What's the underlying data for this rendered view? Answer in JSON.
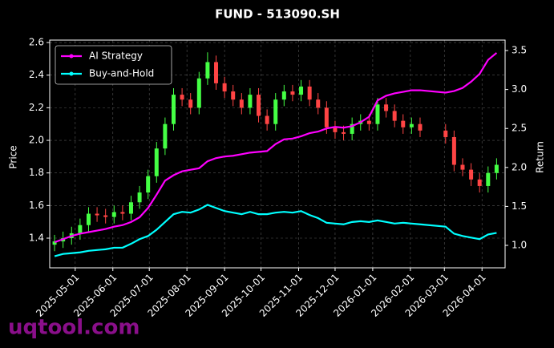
{
  "chart_data": {
    "type": "candlestick",
    "title": "FUND - 513090.SH",
    "ylabel": "Price",
    "y2label": "Return",
    "watermark": "uqtool.com",
    "up_color": "#44ff44",
    "down_color": "#ff4444",
    "grid": true,
    "legend": "upper left",
    "xlim": [
      "2025-04-10",
      "2026-04-20"
    ],
    "xticks": [
      "2025-05-01",
      "2025-06-01",
      "2025-07-01",
      "2025-08-01",
      "2025-09-01",
      "2025-10-01",
      "2025-11-01",
      "2025-12-01",
      "2026-01-01",
      "2026-02-01",
      "2026-03-01",
      "2026-04-01"
    ],
    "ylim": [
      1.218,
      2.615
    ],
    "yticks": [
      1.4,
      1.6,
      1.8,
      {
        "value": 2,
        "label": "2.0"
      },
      2.2,
      2.4,
      2.6
    ],
    "y2lim": [
      0.712,
      3.634
    ],
    "y2ticks": [
      {
        "value": 1,
        "label": "1.0"
      },
      1.5,
      {
        "value": 2,
        "label": "2.0"
      },
      2.5,
      {
        "value": 3,
        "label": "3.0"
      },
      3.5
    ],
    "x": [
      "2025-04-14",
      "2025-04-21",
      "2025-04-28",
      "2025-05-05",
      "2025-05-12",
      "2025-05-19",
      "2025-05-26",
      "2025-06-02",
      "2025-06-09",
      "2025-06-16",
      "2025-06-23",
      "2025-06-30",
      "2025-07-07",
      "2025-07-14",
      "2025-07-21",
      "2025-07-28",
      "2025-08-04",
      "2025-08-11",
      "2025-08-18",
      "2025-08-25",
      "2025-09-01",
      "2025-09-08",
      "2025-09-15",
      "2025-09-22",
      "2025-09-29",
      "2025-10-06",
      "2025-10-13",
      "2025-10-20",
      "2025-10-27",
      "2025-11-03",
      "2025-11-10",
      "2025-11-17",
      "2025-11-24",
      "2025-12-01",
      "2025-12-08",
      "2025-12-15",
      "2025-12-22",
      "2025-12-29",
      "2026-01-05",
      "2026-01-12",
      "2026-01-19",
      "2026-01-26",
      "2026-02-02",
      "2026-02-09",
      "2026-03-02",
      "2026-03-09",
      "2026-03-16",
      "2026-03-23",
      "2026-03-30",
      "2026-04-06",
      "2026-04-13"
    ],
    "open": [
      1.36,
      1.38,
      1.4,
      1.43,
      1.48,
      1.55,
      1.54,
      1.53,
      1.56,
      1.55,
      1.62,
      1.68,
      1.78,
      1.95,
      2.1,
      2.28,
      2.25,
      2.2,
      2.38,
      2.48,
      2.35,
      2.3,
      2.25,
      2.2,
      2.28,
      2.15,
      2.1,
      2.25,
      2.3,
      2.28,
      2.33,
      2.25,
      2.2,
      2.08,
      2.05,
      2.04,
      2.1,
      2.12,
      2.1,
      2.22,
      2.18,
      2.12,
      2.08,
      2.1,
      2.06,
      2.02,
      1.85,
      1.82,
      1.76,
      1.72,
      1.8
    ],
    "high": [
      1.42,
      1.44,
      1.47,
      1.52,
      1.59,
      1.59,
      1.58,
      1.6,
      1.6,
      1.66,
      1.72,
      1.82,
      1.99,
      2.14,
      2.32,
      2.32,
      2.29,
      2.42,
      2.54,
      2.52,
      2.39,
      2.34,
      2.29,
      2.32,
      2.32,
      2.19,
      2.29,
      2.34,
      2.34,
      2.37,
      2.37,
      2.29,
      2.24,
      2.12,
      2.09,
      2.14,
      2.16,
      2.16,
      2.26,
      2.26,
      2.22,
      2.16,
      2.14,
      2.14,
      2.1,
      2.06,
      1.89,
      1.86,
      1.8,
      1.84,
      1.89
    ],
    "low": [
      1.32,
      1.34,
      1.36,
      1.39,
      1.44,
      1.5,
      1.49,
      1.49,
      1.51,
      1.51,
      1.58,
      1.64,
      1.74,
      1.91,
      2.06,
      2.21,
      2.16,
      2.16,
      2.34,
      2.31,
      2.26,
      2.21,
      2.16,
      2.16,
      2.11,
      2.06,
      2.06,
      2.21,
      2.24,
      2.24,
      2.21,
      2.16,
      2.04,
      2.01,
      2.0,
      2.0,
      2.06,
      2.06,
      2.06,
      2.14,
      2.08,
      2.04,
      2.04,
      2.02,
      1.98,
      1.81,
      1.78,
      1.72,
      1.68,
      1.68,
      1.76
    ],
    "close": [
      1.38,
      1.4,
      1.43,
      1.48,
      1.55,
      1.54,
      1.53,
      1.56,
      1.55,
      1.62,
      1.68,
      1.78,
      1.95,
      2.1,
      2.28,
      2.25,
      2.2,
      2.38,
      2.48,
      2.35,
      2.3,
      2.25,
      2.2,
      2.28,
      2.15,
      2.1,
      2.25,
      2.3,
      2.28,
      2.33,
      2.25,
      2.2,
      2.08,
      2.05,
      2.04,
      2.1,
      2.12,
      2.1,
      2.22,
      2.18,
      2.12,
      2.08,
      2.1,
      2.06,
      2.02,
      1.85,
      1.82,
      1.76,
      1.72,
      1.8,
      1.85
    ],
    "series": [
      {
        "name": "AI Strategy",
        "color": "#ff00ff",
        "axis": "y2",
        "values": [
          1.04,
          1.08,
          1.12,
          1.15,
          1.17,
          1.19,
          1.21,
          1.24,
          1.26,
          1.3,
          1.36,
          1.48,
          1.65,
          1.83,
          1.9,
          1.95,
          1.97,
          1.99,
          2.08,
          2.12,
          2.14,
          2.15,
          2.17,
          2.19,
          2.2,
          2.21,
          2.3,
          2.36,
          2.37,
          2.4,
          2.44,
          2.46,
          2.5,
          2.52,
          2.51,
          2.53,
          2.58,
          2.65,
          2.86,
          2.92,
          2.95,
          2.97,
          2.99,
          2.99,
          2.96,
          2.98,
          3.02,
          3.1,
          3.2,
          3.38,
          3.47
        ]
      },
      {
        "name": "Buy-and-Hold",
        "color": "#00ffff",
        "axis": "y2",
        "values": [
          0.86,
          0.89,
          0.9,
          0.91,
          0.93,
          0.94,
          0.95,
          0.97,
          0.97,
          1.02,
          1.08,
          1.12,
          1.2,
          1.3,
          1.4,
          1.43,
          1.42,
          1.46,
          1.52,
          1.48,
          1.44,
          1.42,
          1.4,
          1.43,
          1.4,
          1.4,
          1.42,
          1.43,
          1.42,
          1.44,
          1.39,
          1.35,
          1.29,
          1.28,
          1.27,
          1.3,
          1.31,
          1.3,
          1.32,
          1.3,
          1.28,
          1.29,
          1.28,
          1.27,
          1.24,
          1.15,
          1.12,
          1.1,
          1.08,
          1.14,
          1.16
        ]
      }
    ]
  }
}
